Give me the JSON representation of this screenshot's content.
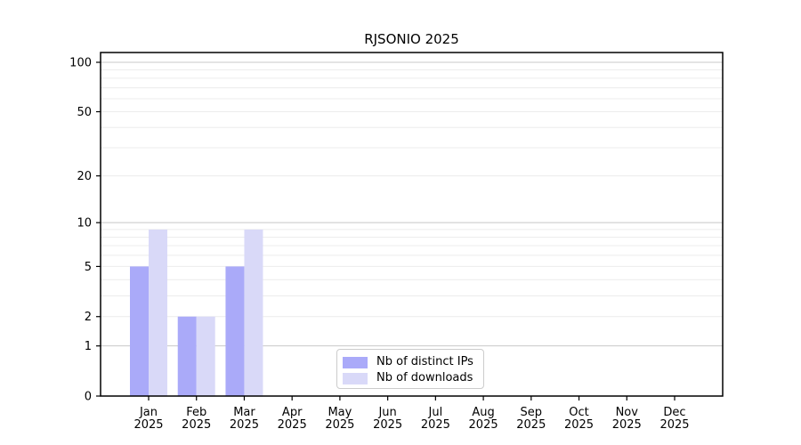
{
  "figure": {
    "background_color": "#ffffff",
    "text_color": "#000000"
  },
  "chart_data": {
    "type": "bar",
    "title": "RJSONIO 2025",
    "xlabel": "",
    "ylabel": "",
    "x_months": [
      "Jan",
      "Feb",
      "Mar",
      "Apr",
      "May",
      "Jun",
      "Jul",
      "Aug",
      "Sep",
      "Oct",
      "Nov",
      "Dec"
    ],
    "x_year": "2025",
    "series": [
      {
        "name": "Nb of distinct IPs",
        "color": "#aaaaf9",
        "values": [
          5,
          2,
          5,
          0,
          0,
          0,
          0,
          0,
          0,
          0,
          0,
          0
        ]
      },
      {
        "name": "Nb of downloads",
        "color": "#d9d9f8",
        "values": [
          9,
          2,
          9,
          0,
          0,
          0,
          0,
          0,
          0,
          0,
          0,
          0
        ]
      }
    ],
    "y_axis": {
      "scale": "log1p",
      "ticks": [
        0,
        1,
        2,
        5,
        10,
        20,
        50,
        100
      ],
      "minor_ticks": [
        3,
        4,
        6,
        7,
        8,
        9,
        30,
        40,
        60,
        70,
        80,
        90
      ],
      "major_gridline_values": [
        1,
        10,
        100
      ],
      "ylim": [
        0,
        114
      ]
    },
    "grid": {
      "orientation": "horizontal",
      "major_color": "#c8c8c8",
      "minor_color": "#ececec"
    },
    "axis_color": "#000000",
    "legend": {
      "position": "lower center inside",
      "border_color": "#cccccc"
    }
  }
}
